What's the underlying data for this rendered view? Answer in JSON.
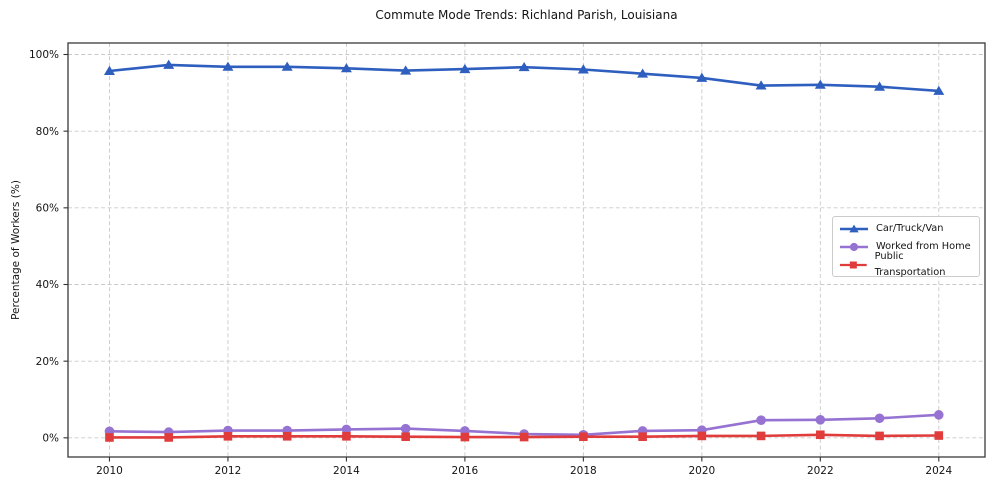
{
  "chart_data": {
    "type": "line",
    "title": "Commute Mode Trends: Richland Parish, Louisiana",
    "xlabel": "",
    "ylabel": "Percentage of Workers (%)",
    "x": [
      2010,
      2011,
      2012,
      2013,
      2014,
      2015,
      2016,
      2017,
      2018,
      2019,
      2020,
      2021,
      2022,
      2023,
      2024
    ],
    "series": [
      {
        "name": "Car/Truck/Van",
        "marker": "triangle",
        "color": "#2e5fbf",
        "values": [
          95.7,
          97.3,
          96.8,
          96.8,
          96.4,
          95.8,
          96.2,
          96.7,
          96.1,
          95.0,
          93.9,
          91.9,
          92.1,
          91.6,
          90.5
        ]
      },
      {
        "name": "Worked from Home",
        "marker": "circle",
        "color": "#9673d2",
        "values": [
          1.7,
          1.5,
          1.9,
          1.9,
          2.2,
          2.4,
          1.8,
          1.0,
          0.8,
          1.8,
          2.0,
          4.6,
          4.7,
          5.1,
          6.0
        ]
      },
      {
        "name": "Public Transportation",
        "marker": "square",
        "color": "#e03c3c",
        "values": [
          0.1,
          0.1,
          0.4,
          0.4,
          0.4,
          0.3,
          0.2,
          0.2,
          0.3,
          0.3,
          0.5,
          0.5,
          0.8,
          0.5,
          0.6
        ]
      }
    ],
    "xticks": {
      "values": [
        2010,
        2012,
        2014,
        2016,
        2018,
        2020,
        2022,
        2024
      ],
      "labels": [
        "2010",
        "2012",
        "2014",
        "2016",
        "2018",
        "2020",
        "2022",
        "2024"
      ]
    },
    "yticks": {
      "values": [
        0,
        20,
        40,
        60,
        80,
        100
      ],
      "labels": [
        "0%",
        "20%",
        "40%",
        "60%",
        "80%",
        "100%"
      ]
    },
    "xlim": [
      2009.3,
      2024.78
    ],
    "ylim": [
      -5,
      103
    ],
    "grid": true,
    "legend_position": "center-right",
    "colors": {
      "grid": "#c9c9c9",
      "spine": "#3a3a3a",
      "tick": "#333333",
      "text": "#141414",
      "background": "#ffffff"
    }
  }
}
